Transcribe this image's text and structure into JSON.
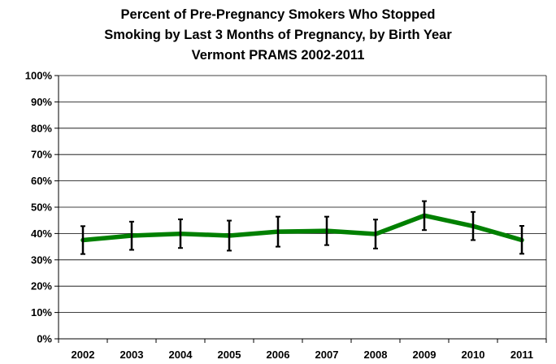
{
  "chart_data": {
    "type": "line",
    "title_lines": [
      "Percent of Pre-Pregnancy Smokers Who Stopped",
      "Smoking by Last 3 Months of Pregnancy, by Birth Year",
      "Vermont PRAMS 2002-2011"
    ],
    "xlabel": "",
    "ylabel": "",
    "categories": [
      "2002",
      "2003",
      "2004",
      "2005",
      "2006",
      "2007",
      "2008",
      "2009",
      "2010",
      "2011"
    ],
    "series": [
      {
        "values": [
          37.5,
          39.2,
          39.9,
          39.2,
          40.7,
          41.0,
          39.8,
          46.8,
          42.8,
          37.5
        ],
        "ci_low": [
          32.2,
          33.8,
          34.5,
          33.5,
          35.0,
          35.6,
          34.3,
          41.3,
          37.5,
          32.3
        ],
        "ci_high": [
          42.8,
          44.5,
          45.4,
          44.9,
          46.4,
          46.4,
          45.3,
          52.3,
          48.2,
          42.9
        ],
        "color": "#008000"
      }
    ],
    "ylim": [
      0,
      100
    ],
    "yticks": [
      "0%",
      "10%",
      "20%",
      "30%",
      "40%",
      "50%",
      "60%",
      "70%",
      "80%",
      "90%",
      "100%"
    ],
    "grid": true,
    "legend": "none"
  }
}
